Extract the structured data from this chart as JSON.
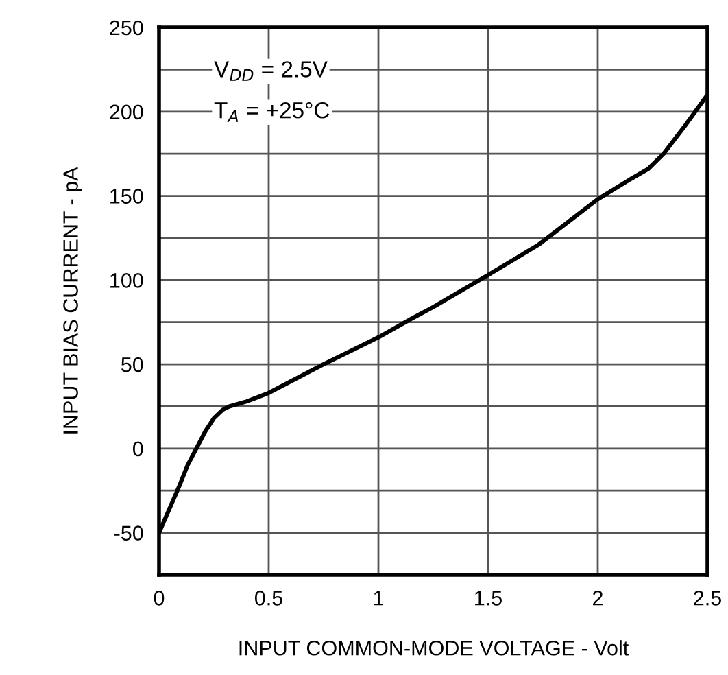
{
  "chart_data": {
    "type": "line",
    "xlabel": "INPUT COMMON-MODE VOLTAGE - Volt",
    "ylabel": "INPUT BIAS CURRENT - pA",
    "annotations": [
      "V$_{DD}$ = 2.5V",
      "T$_{A}$ = +25°C"
    ],
    "series": [
      {
        "color": "#000000",
        "x": [
          0,
          0.05,
          0.09,
          0.13,
          0.17,
          0.21,
          0.25,
          0.29,
          0.32,
          0.4,
          0.5,
          0.75,
          1,
          1.15,
          1.25,
          1.5,
          1.73,
          2,
          2.15,
          2.23,
          2.3,
          2.4,
          2.5
        ],
        "values": [
          -50,
          -35,
          -23,
          -10,
          0,
          10,
          18,
          23,
          25,
          28,
          33,
          50,
          66,
          77,
          84,
          103,
          121,
          148,
          160,
          166,
          175,
          192,
          210
        ]
      }
    ],
    "xlim": [
      0,
      2.5
    ],
    "ylim": [
      -75,
      250
    ],
    "xticks": [
      0,
      0.5,
      1,
      1.5,
      2,
      2.5
    ],
    "yticks": [
      {
        "value": -75,
        "label": null
      },
      -50,
      {
        "value": -25,
        "label": null
      },
      0,
      {
        "value": 25,
        "label": null
      },
      50,
      {
        "value": 75,
        "label": null
      },
      100,
      {
        "value": 125,
        "label": null
      },
      150,
      {
        "value": 175,
        "label": null
      },
      200,
      {
        "value": 225,
        "label": null
      },
      250
    ],
    "grid": true,
    "marker": "none",
    "line_style": "solid"
  }
}
